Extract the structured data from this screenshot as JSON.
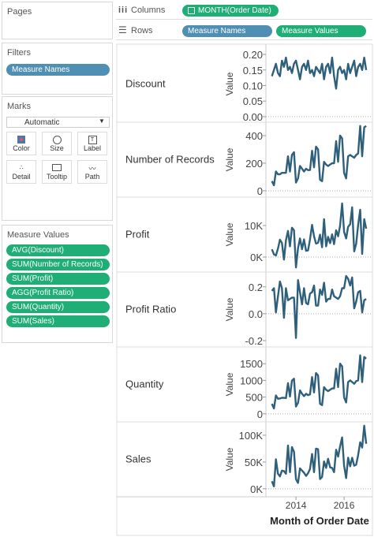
{
  "pages": {
    "title": "Pages"
  },
  "shelves": {
    "columns_label": "Columns",
    "columns_pill": "MONTH(Order Date)",
    "rows_label": "Rows",
    "rows_pills": [
      "Measure Names",
      "Measure Values"
    ]
  },
  "filters": {
    "title": "Filters",
    "pills": [
      "Measure Names"
    ]
  },
  "marks": {
    "title": "Marks",
    "mark_type": "Automatic",
    "buttons": [
      "Color",
      "Size",
      "Label",
      "Detail",
      "Tooltip",
      "Path"
    ]
  },
  "measure_values": {
    "title": "Measure Values",
    "pills": [
      "AVG(Discount)",
      "SUM(Number of Records)",
      "SUM(Profit)",
      "AGG(Profit Ratio)",
      "SUM(Quantity)",
      "SUM(Sales)"
    ]
  },
  "chart_data": {
    "type": "line",
    "xlabel": "Month of Order Date",
    "ylabel": "Value",
    "color": "#2e5f7b",
    "zero_line": true,
    "x": [
      2013,
      2013.083,
      2013.167,
      2013.25,
      2013.333,
      2013.417,
      2013.5,
      2013.583,
      2013.667,
      2013.75,
      2013.833,
      2013.917,
      2014,
      2014.083,
      2014.167,
      2014.25,
      2014.333,
      2014.417,
      2014.5,
      2014.583,
      2014.667,
      2014.75,
      2014.833,
      2014.917,
      2015,
      2015.083,
      2015.167,
      2015.25,
      2015.333,
      2015.417,
      2015.5,
      2015.583,
      2015.667,
      2015.75,
      2015.833,
      2015.917,
      2016,
      2016.083,
      2016.167,
      2016.25,
      2016.333,
      2016.417,
      2016.5,
      2016.583,
      2016.667,
      2016.75,
      2016.833,
      2016.917
    ],
    "xlim": [
      2012.75,
      2017.11
    ],
    "xticks": [
      2014,
      2016
    ],
    "series": [
      {
        "name": "Discount",
        "ylim": [
          -0.018,
          0.228
        ],
        "yticks": [
          {
            "value": 0.2,
            "label": "0.20"
          },
          0.15,
          {
            "value": 0.1,
            "label": "0.10"
          },
          0.05,
          {
            "value": 0,
            "label": "0.00"
          }
        ],
        "values": [
          0.13,
          0.15,
          0.17,
          0.14,
          0.13,
          0.18,
          0.16,
          0.19,
          0.15,
          0.16,
          0.14,
          0.17,
          0.18,
          0.15,
          0.12,
          0.16,
          0.17,
          0.15,
          0.18,
          0.14,
          0.15,
          0.13,
          0.16,
          0.15,
          0.14,
          0.17,
          0.12,
          0.16,
          0.17,
          0.14,
          0.19,
          0.13,
          0.09,
          0.15,
          0.16,
          0.14,
          0.15,
          0.12,
          0.17,
          0.14,
          0.16,
          0.18,
          0.13,
          0.16,
          0.17,
          0.15,
          0.19,
          0.15
        ]
      },
      {
        "name": "Number of Records",
        "ylim": [
          -46,
          497
        ],
        "yticks": [
          400,
          200,
          0
        ],
        "values": [
          70,
          40,
          140,
          120,
          120,
          130,
          130,
          130,
          250,
          140,
          260,
          280,
          60,
          90,
          180,
          160,
          140,
          160,
          150,
          150,
          290,
          170,
          320,
          300,
          80,
          70,
          210,
          190,
          180,
          190,
          200,
          200,
          360,
          210,
          400,
          380,
          130,
          90,
          250,
          260,
          250,
          240,
          260,
          270,
          470,
          250,
          460,
          470
        ]
      },
      {
        "name": "Profit",
        "ylim": [
          -4750,
          19000
        ],
        "yticks": [
          {
            "value": 10000,
            "label": "10K"
          },
          {
            "value": 0,
            "label": "0K"
          }
        ],
        "values": [
          2450,
          860,
          500,
          2700,
          5500,
          4500,
          -800,
          5300,
          8300,
          3400,
          9300,
          8500,
          -3300,
          2800,
          5900,
          2500,
          5600,
          2000,
          2100,
          5600,
          10200,
          6600,
          4300,
          4500,
          7100,
          3100,
          12000,
          3400,
          6400,
          4400,
          7200,
          4100,
          8500,
          6600,
          9900,
          17000,
          8000,
          5900,
          9600,
          10400,
          15800,
          1800,
          4200,
          10200,
          15000,
          1000,
          12000,
          9000
        ]
      },
      {
        "name": "Profit Ratio",
        "ylim": [
          -0.247,
          0.31
        ],
        "yticks": [
          0.2,
          {
            "value": 0,
            "label": "0.0"
          },
          -0.2
        ],
        "values": [
          0.17,
          0.19,
          0.01,
          0.13,
          0.24,
          0.19,
          -0.03,
          0.19,
          0.1,
          0.11,
          0.12,
          0.12,
          -0.18,
          0.25,
          0.16,
          0.07,
          0.19,
          0.08,
          0.07,
          0.15,
          0.16,
          0.21,
          0.06,
          0.06,
          0.18,
          0.14,
          0.23,
          0.09,
          0.11,
          0.11,
          0.18,
          0.13,
          0.12,
          0.11,
          0.13,
          0.19,
          0.19,
          0.28,
          0.26,
          0.21,
          0.27,
          0.04,
          0.09,
          0.16,
          0.17,
          0.01,
          0.1,
          0.11
        ]
      },
      {
        "name": "Quantity",
        "ylim": [
          -240,
          2000
        ],
        "yticks": [
          1500,
          1000,
          500,
          0
        ],
        "values": [
          300,
          160,
          550,
          450,
          460,
          480,
          480,
          470,
          920,
          520,
          990,
          1050,
          220,
          330,
          700,
          600,
          530,
          600,
          560,
          580,
          1100,
          640,
          1220,
          1150,
          300,
          260,
          800,
          720,
          680,
          720,
          760,
          760,
          1350,
          800,
          1500,
          1420,
          490,
          340,
          950,
          1000,
          950,
          900,
          980,
          1000,
          1750,
          950,
          1700,
          1650
        ]
      },
      {
        "name": "Sales",
        "ylim": [
          -15000,
          125000
        ],
        "yticks": [
          {
            "value": 100000,
            "label": "100K"
          },
          {
            "value": 50000,
            "label": "50K"
          },
          {
            "value": 0,
            "label": "0K"
          }
        ],
        "values": [
          14000,
          4500,
          55000,
          28000,
          23000,
          34000,
          33000,
          28000,
          81000,
          31000,
          78000,
          69000,
          18000,
          11000,
          38000,
          34000,
          30000,
          24000,
          29000,
          37000,
          65000,
          31000,
          75000,
          74000,
          18000,
          22000,
          51000,
          39000,
          56000,
          40000,
          39000,
          31000,
          73000,
          60000,
          79000,
          96000,
          43000,
          20000,
          58000,
          42000,
          58000,
          43000,
          45000,
          63000,
          87000,
          77000,
          118000,
          84000
        ]
      }
    ]
  }
}
